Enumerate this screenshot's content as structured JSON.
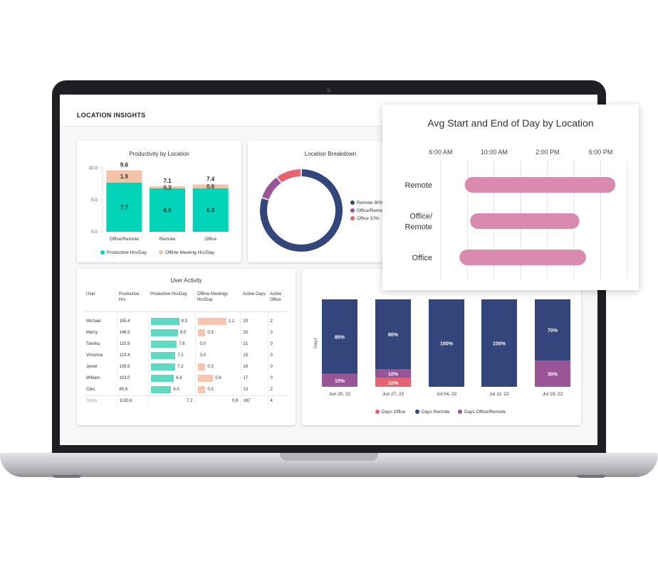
{
  "page_title": "LOCATION INSIGHTS",
  "colors": {
    "teal": "#00d4b8",
    "peach": "#f2c3a8",
    "navy": "#33457a",
    "purple": "#9a5597",
    "coral": "#e8626f",
    "pink": "#d98aae"
  },
  "productivity": {
    "title": "Productivity by Location",
    "legend": [
      "Productive Hrs/Day",
      "Offline Meeting Hrs/Day"
    ]
  },
  "breakdown": {
    "title": "Location Breakdown",
    "legend": [
      "Remote 80%",
      "Office/Remote",
      "Office 10%"
    ]
  },
  "user_activity": {
    "title": "User Activity",
    "headers": [
      "User",
      "Productive Hrs",
      "Productive Hrs/Day",
      "Offline Meetings Hrs/Day",
      "Active Days",
      "Active Office"
    ],
    "rows": [
      {
        "user": "Michael",
        "hrs": "155.4",
        "hrs_day": "8.3",
        "hrs_day_v": 8.3,
        "offline": "1.1",
        "offline_v": 1.1,
        "days": "20",
        "office": "2"
      },
      {
        "user": "Marcy",
        "hrs": "146.5",
        "hrs_day": "8.0",
        "hrs_day_v": 8.0,
        "offline": "0.3",
        "offline_v": 0.3,
        "days": "20",
        "office": "0"
      },
      {
        "user": "Tamika",
        "hrs": "132.9",
        "hrs_day": "7.6",
        "hrs_day_v": 7.6,
        "offline": "0.0",
        "offline_v": 0.0,
        "days": "21",
        "office": "0"
      },
      {
        "user": "Victorina",
        "hrs": "123.4",
        "hrs_day": "7.2",
        "hrs_day_v": 7.2,
        "offline": "0.0",
        "offline_v": 0.0,
        "days": "15",
        "office": "0"
      },
      {
        "user": "Javier",
        "hrs": "109.5",
        "hrs_day": "7.2",
        "hrs_day_v": 7.2,
        "offline": "0.3",
        "offline_v": 0.3,
        "days": "19",
        "office": "0"
      },
      {
        "user": "William",
        "hrs": "103.0",
        "hrs_day": "6.8",
        "hrs_day_v": 6.8,
        "offline": "0.6",
        "offline_v": 0.6,
        "days": "17",
        "office": "0"
      },
      {
        "user": "Cleo",
        "hrs": "85.6",
        "hrs_day": "6.0",
        "hrs_day_v": 6.0,
        "offline": "0.3",
        "offline_v": 0.3,
        "days": "13",
        "office": "2"
      }
    ],
    "totals": {
      "label": "Totals",
      "hrs": "1130.6",
      "hrs_day": "7.2",
      "offline": "0.6",
      "days": "167",
      "office": "4"
    }
  },
  "days_chart": {
    "ylabel": "Days",
    "legend": [
      "Days Office",
      "Days Remote",
      "Days Office/Remote"
    ]
  },
  "avg_day": {
    "title": "Avg Start and End of Day by Location"
  },
  "chart_data": [
    {
      "type": "bar",
      "stacked": true,
      "title": "Productivity by Location",
      "categories": [
        "Office/Remote",
        "Remote",
        "Office"
      ],
      "ylim": [
        0,
        10
      ],
      "yticks": [
        "10.0",
        "5.0",
        "0.0"
      ],
      "series": [
        {
          "name": "Productive Hrs/Day",
          "values": [
            7.7,
            6.8,
            6.8
          ]
        },
        {
          "name": "Offline Meeting Hrs/Day",
          "values": [
            1.9,
            0.3,
            0.6
          ]
        }
      ],
      "totals": [
        9.6,
        7.1,
        7.4
      ],
      "legend": "bottom"
    },
    {
      "type": "pie",
      "donut": true,
      "title": "Location Breakdown",
      "slices": [
        {
          "name": "Remote 80%",
          "value": 80
        },
        {
          "name": "Office/Remote",
          "value": 10
        },
        {
          "name": "Office 10%",
          "value": 10
        }
      ],
      "legend": "right"
    },
    {
      "type": "bar",
      "stacked": true,
      "ylabel": "Days",
      "categories": [
        "Jun 20, 22",
        "Jun 27, 22",
        "Jul 04, 22",
        "Jul 11, 22",
        "Jul 18, 22"
      ],
      "series": [
        {
          "name": "Days Office",
          "values": [
            0,
            10,
            0,
            0,
            0
          ],
          "labels": [
            "",
            "10%",
            "",
            "",
            ""
          ]
        },
        {
          "name": "Days Office/Remote",
          "values": [
            15,
            10,
            0,
            0,
            30
          ],
          "labels": [
            "15%",
            "10%",
            "",
            "",
            "30%"
          ]
        },
        {
          "name": "Days Remote",
          "values": [
            85,
            80,
            100,
            100,
            70
          ],
          "labels": [
            "85%",
            "80%",
            "100%",
            "100%",
            "70%"
          ]
        }
      ],
      "legend": "bottom"
    },
    {
      "type": "bar",
      "orientation": "horizontal-range",
      "title": "Avg Start and End of Day by Location",
      "categories": [
        "Remote",
        "Office/\nRemote",
        "Office"
      ],
      "xticks": [
        "6:00 AM",
        "10:00 AM",
        "2:00 PM",
        "6:00 PM"
      ],
      "xlim": [
        6,
        20
      ],
      "ranges": [
        [
          7.8,
          19.1
        ],
        [
          8.2,
          16.4
        ],
        [
          7.4,
          16.9
        ]
      ]
    }
  ]
}
